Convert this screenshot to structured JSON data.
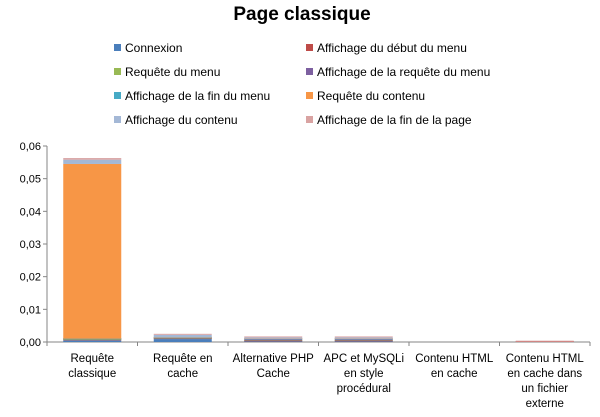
{
  "chart_data": {
    "type": "bar",
    "stacked": true,
    "title": "Page classique",
    "xlabel": "",
    "ylabel": "",
    "ylim": [
      0,
      0.06
    ],
    "yticks": [
      "0,00",
      "0,01",
      "0,02",
      "0,03",
      "0,04",
      "0,05",
      "0,06"
    ],
    "grid": false,
    "legend_position": "top",
    "categories": [
      [
        "Requête",
        "classique"
      ],
      [
        "Requête en",
        "cache"
      ],
      [
        "Alternative PHP",
        "Cache"
      ],
      [
        "APC et MySQLi",
        "en style",
        "procédural"
      ],
      [
        "Contenu HTML",
        "en cache"
      ],
      [
        "Contenu HTML",
        "en cache dans",
        "un fichier",
        "externe"
      ]
    ],
    "series": [
      {
        "name": "Connexion",
        "color": "#4a7ebb",
        "values": [
          0.0005,
          0.0009,
          0.0002,
          0.0002,
          0.0,
          0.0
        ]
      },
      {
        "name": "Affichage du début du menu",
        "color": "#be4b48",
        "values": [
          0.0001,
          0.0001,
          0.0002,
          0.0002,
          0.0,
          0.0001
        ]
      },
      {
        "name": "Requête du menu",
        "color": "#98b954",
        "values": [
          0.0002,
          0.0001,
          0.0001,
          0.0001,
          0.0,
          0.0
        ]
      },
      {
        "name": "Affichage de la requête du menu",
        "color": "#7d60a0",
        "values": [
          0.0001,
          0.0001,
          0.0003,
          0.0003,
          0.0,
          0.0
        ]
      },
      {
        "name": "Affichage de la fin du menu",
        "color": "#46aac5",
        "values": [
          0.0001,
          0.0001,
          0.0001,
          0.0001,
          0.0,
          0.0
        ]
      },
      {
        "name": "Requête du contenu",
        "color": "#f79646",
        "values": [
          0.0535,
          0.0001,
          0.0001,
          0.0001,
          0.0,
          0.0
        ]
      },
      {
        "name": "Affichage du contenu",
        "color": "#a4b8d6",
        "values": [
          0.0013,
          0.0008,
          0.0004,
          0.0004,
          0.0,
          0.0
        ]
      },
      {
        "name": "Affichage de la fin de la page",
        "color": "#d9a3a2",
        "values": [
          0.0005,
          0.0002,
          0.0002,
          0.0002,
          0.0,
          0.0002
        ]
      }
    ]
  }
}
